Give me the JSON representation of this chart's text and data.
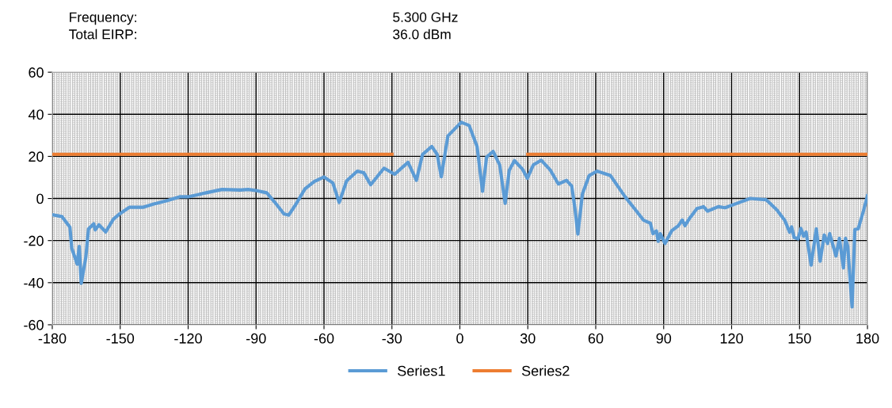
{
  "chart_data": {
    "type": "line",
    "annotations": [
      "Frequency:",
      "5.300 GHz",
      "Total EIRP:",
      "36.0 dBm"
    ],
    "xlim": [
      -180,
      180
    ],
    "xticks": [
      -180,
      -150,
      -120,
      -90,
      -60,
      -30,
      0,
      30,
      60,
      90,
      120,
      150,
      180
    ],
    "ylim": [
      -60,
      60
    ],
    "yticks": [
      -60,
      -40,
      -20,
      0,
      20,
      40,
      60
    ],
    "grid": true,
    "legend": "bottom",
    "marker": "none",
    "line_style": "solid",
    "series": [
      {
        "name": "Series1",
        "color": "#5b9bd5",
        "x": [
          -180,
          -175.7,
          -172.2,
          -171.4,
          -169,
          -168.1,
          -167.2,
          -165.2,
          -164,
          -161.7,
          -161,
          -159.4,
          -156.4,
          -153,
          -150,
          -146,
          -144,
          -140,
          -135.5,
          -129.6,
          -123.8,
          -120,
          -112.1,
          -105,
          -97,
          -93.5,
          -90,
          -85.3,
          -81.8,
          -77.7,
          -75.6,
          -72.5,
          -68.4,
          -64.3,
          -60,
          -56.1,
          -53.3,
          -50,
          -45.3,
          -42.4,
          -39.4,
          -33.5,
          -28.8,
          -22.9,
          -19.2,
          -16.5,
          -12.4,
          -10,
          -8.2,
          -5.3,
          0.6,
          4.1,
          7.6,
          10,
          11.8,
          14.7,
          17.6,
          20,
          21.8,
          24.1,
          27.6,
          29.8,
          32.4,
          35.9,
          40,
          43.5,
          47.1,
          49.4,
          50.9,
          52.1,
          54.1,
          57.1,
          60.6,
          66.5,
          72.9,
          77.1,
          81.2,
          84.1,
          85.3,
          86.8,
          87.6,
          88.5,
          90.6,
          93.5,
          96.5,
          98.2,
          99.4,
          101.2,
          104.7,
          107.6,
          109.4,
          114.1,
          117.1,
          122.4,
          128.2,
          135.3,
          140,
          143.5,
          145.6,
          146.5,
          147.6,
          149.4,
          150.6,
          151.8,
          152.9,
          155.1,
          157.4,
          159.1,
          160.9,
          162.4,
          163.3,
          166.1,
          167.6,
          169.4,
          170.3,
          171.3,
          173.2,
          174.4,
          175.9,
          178.2,
          180
        ],
        "values": [
          -7.7,
          -8.6,
          -13.6,
          -23.6,
          -31.2,
          -22.8,
          -40.3,
          -28,
          -14.5,
          -12,
          -14.9,
          -12.5,
          -15.9,
          -9.8,
          -7.1,
          -4.2,
          -4.2,
          -4.2,
          -2.7,
          -1.1,
          0.8,
          0.8,
          2.7,
          4.3,
          4.0,
          4.3,
          3.8,
          2.7,
          -1.7,
          -7.3,
          -7.9,
          -2.9,
          4.6,
          8.1,
          10.2,
          7.4,
          -1.9,
          8.4,
          13,
          12.2,
          6.5,
          14.4,
          11.5,
          17.2,
          8.6,
          20.9,
          24.7,
          20.9,
          10.3,
          29.7,
          36.2,
          34.7,
          24.7,
          3.4,
          19.7,
          22.4,
          15.9,
          -2.3,
          13.4,
          18,
          14,
          9.6,
          15.9,
          18.2,
          13.4,
          6.9,
          8.6,
          5.9,
          -5.4,
          -16.9,
          2.1,
          10.9,
          13,
          10.9,
          0.9,
          -4.8,
          -10.4,
          -11.7,
          -16.7,
          -15.4,
          -20.4,
          -16.7,
          -21.4,
          -15.4,
          -12.9,
          -10.2,
          -12.9,
          -9.8,
          -4.8,
          -3.9,
          -6.0,
          -3.9,
          -4.4,
          -2.3,
          0,
          -0.6,
          -5.4,
          -10.4,
          -16,
          -13.5,
          -18.5,
          -19.2,
          -14.2,
          -17.9,
          -16,
          -31.7,
          -14.4,
          -29.8,
          -17.3,
          -21.4,
          -16.7,
          -27.3,
          -18.9,
          -33,
          -18.9,
          -22.9,
          -51.5,
          -14.8,
          -14.4,
          -6.0,
          1.3
        ]
      },
      {
        "name": "Series2",
        "color": "#ed7d31",
        "x": [
          -180,
          -30,
          0,
          30,
          180
        ],
        "values": [
          21,
          21,
          null,
          21,
          21
        ]
      }
    ]
  }
}
